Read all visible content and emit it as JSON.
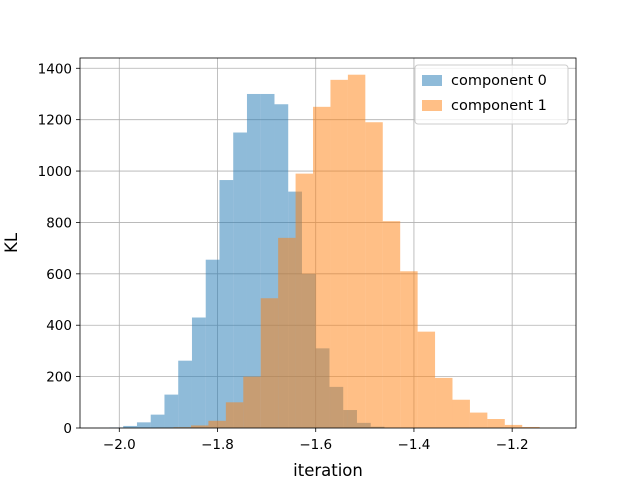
{
  "chart_data": {
    "type": "histogram",
    "title": "",
    "xlabel": "iteration",
    "ylabel": "KL",
    "xlim": [
      -2.08,
      -1.07
    ],
    "ylim": [
      0,
      1440
    ],
    "xticks": [
      -2.0,
      -1.8,
      -1.6,
      -1.4,
      -1.2
    ],
    "xtick_labels": [
      "−2.0",
      "−1.8",
      "−1.6",
      "−1.4",
      "−1.2"
    ],
    "yticks": [
      0,
      200,
      400,
      600,
      800,
      1000,
      1200,
      1400
    ],
    "ytick_labels": [
      "0",
      "200",
      "400",
      "600",
      "800",
      "1000",
      "1200",
      "1400"
    ],
    "grid": true,
    "legend_position": "top-right",
    "series": [
      {
        "name": "component 0",
        "color": "#1f77b4",
        "alpha": 0.5,
        "bin_edges": [
          -2.02,
          -1.992,
          -1.964,
          -1.936,
          -1.908,
          -1.88,
          -1.852,
          -1.824,
          -1.796,
          -1.768,
          -1.74,
          -1.712,
          -1.684,
          -1.656,
          -1.628,
          -1.6,
          -1.572,
          -1.544,
          -1.516,
          -1.488,
          -1.46
        ],
        "counts": [
          2,
          8,
          22,
          52,
          130,
          262,
          430,
          655,
          965,
          1150,
          1300,
          1300,
          1260,
          920,
          600,
          310,
          160,
          70,
          20,
          5
        ]
      },
      {
        "name": "component 1",
        "color": "#ff7f0e",
        "alpha": 0.5,
        "bin_edges": [
          -1.925,
          -1.8895,
          -1.854,
          -1.8185,
          -1.783,
          -1.7475,
          -1.712,
          -1.6765,
          -1.641,
          -1.6055,
          -1.57,
          -1.5345,
          -1.499,
          -1.4635,
          -1.428,
          -1.3925,
          -1.357,
          -1.3215,
          -1.286,
          -1.2505,
          -1.215,
          -1.1795,
          -1.144,
          -1.1085
        ],
        "counts": [
          1,
          3,
          10,
          28,
          100,
          200,
          505,
          740,
          990,
          1250,
          1355,
          1375,
          1190,
          805,
          610,
          375,
          195,
          110,
          60,
          35,
          12,
          4,
          1
        ]
      }
    ]
  }
}
